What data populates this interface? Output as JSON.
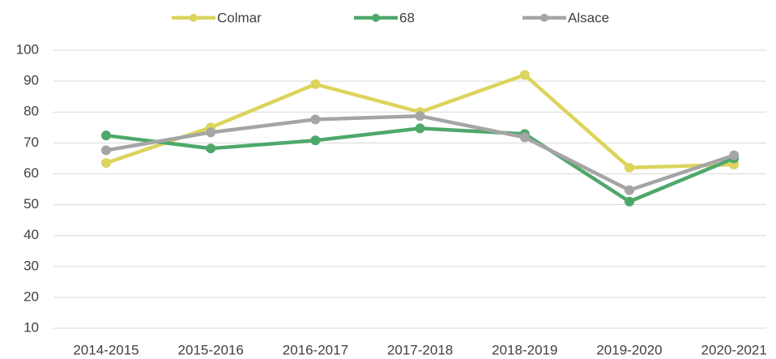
{
  "chart_data": {
    "type": "line",
    "categories": [
      "2014-2015",
      "2015-2016",
      "2016-2017",
      "2017-2018",
      "2018-2019",
      "2019-2020",
      "2020-2021"
    ],
    "series": [
      {
        "name": "Colmar",
        "color": "#dcd45c",
        "values": [
          63.5,
          75,
          89,
          80,
          92,
          62,
          63
        ]
      },
      {
        "name": "68",
        "color": "#4ea86b",
        "values": [
          72.4,
          68.2,
          70.8,
          74.7,
          72.9,
          51,
          65
        ]
      },
      {
        "name": "Alsace",
        "color": "#a5a5a5",
        "values": [
          67.6,
          73.4,
          77.6,
          78.7,
          71.8,
          54.7,
          66
        ]
      }
    ],
    "ylim": [
      10,
      100
    ],
    "yticks": [
      10,
      20,
      30,
      40,
      50,
      60,
      70,
      80,
      90,
      100
    ],
    "grid": true,
    "legend": "top"
  }
}
